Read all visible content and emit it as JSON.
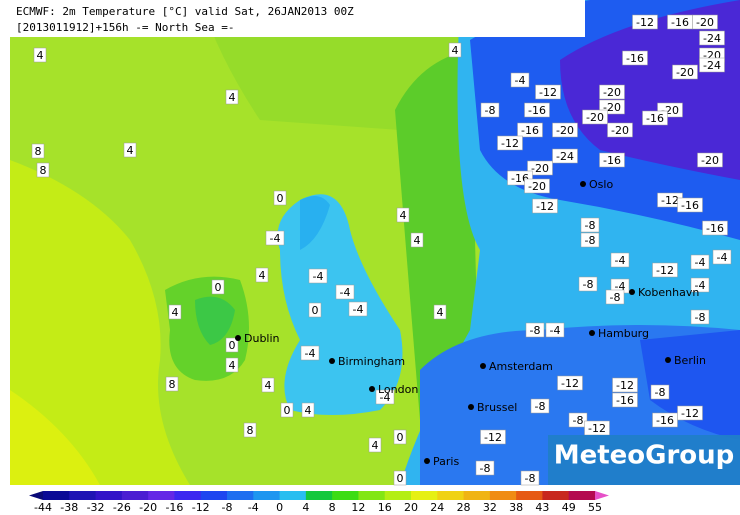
{
  "header": {
    "line1": "ECMWF: 2m Temperature [°C] valid Sat, 26JAN2013 00Z",
    "line2": "[2013011912]+156h  -= North Sea =-"
  },
  "logo": "MeteoGroup",
  "cities": [
    "Oslo",
    "Kobenhavn",
    "Hamburg",
    "Berlin",
    "Amsterdam",
    "Brussel",
    "Paris",
    "London",
    "Birmingham",
    "Dublin"
  ],
  "contour_labels": [
    4,
    4,
    -12,
    -16,
    -20,
    -24,
    -20,
    -24,
    -16,
    -20,
    -4,
    -12,
    -20,
    -20,
    -8,
    -16,
    -20,
    -20,
    -16,
    -20,
    -20,
    -16,
    -12,
    -24,
    -16,
    -20,
    -20,
    -16,
    -20,
    -12,
    -12,
    -16,
    -16,
    -8,
    -8,
    -4,
    -12,
    -4,
    -4,
    -8,
    -4,
    -8,
    -4,
    -8,
    -4,
    -8,
    -12,
    -12,
    -16,
    -8,
    -8,
    -12,
    -8,
    -12,
    -16,
    -12,
    -8,
    -8,
    4,
    8,
    8,
    0,
    4,
    4,
    -4,
    -4,
    -4,
    -4,
    4,
    4,
    4,
    -4,
    4,
    4,
    0,
    4,
    -4,
    0,
    4,
    0,
    8,
    8,
    0,
    0,
    4,
    0
  ],
  "colorbar": {
    "ticks": [
      -44,
      -38,
      -32,
      -26,
      -20,
      -16,
      -12,
      -8,
      -4,
      0,
      4,
      8,
      12,
      16,
      20,
      24,
      28,
      32,
      38,
      43,
      49,
      55
    ],
    "colors": [
      "#0a0a78",
      "#0a0a96",
      "#1e14b4",
      "#3214c8",
      "#4b1ed2",
      "#6428e6",
      "#3c28f0",
      "#1e46f0",
      "#1e6ef0",
      "#1e96f0",
      "#28bef0",
      "#14c83c",
      "#3cdc14",
      "#82e614",
      "#b4ee14",
      "#e6f014",
      "#f0d214",
      "#f0b414",
      "#f08c14",
      "#e65a14",
      "#c8281e",
      "#b40a50",
      "#e650c8"
    ]
  }
}
